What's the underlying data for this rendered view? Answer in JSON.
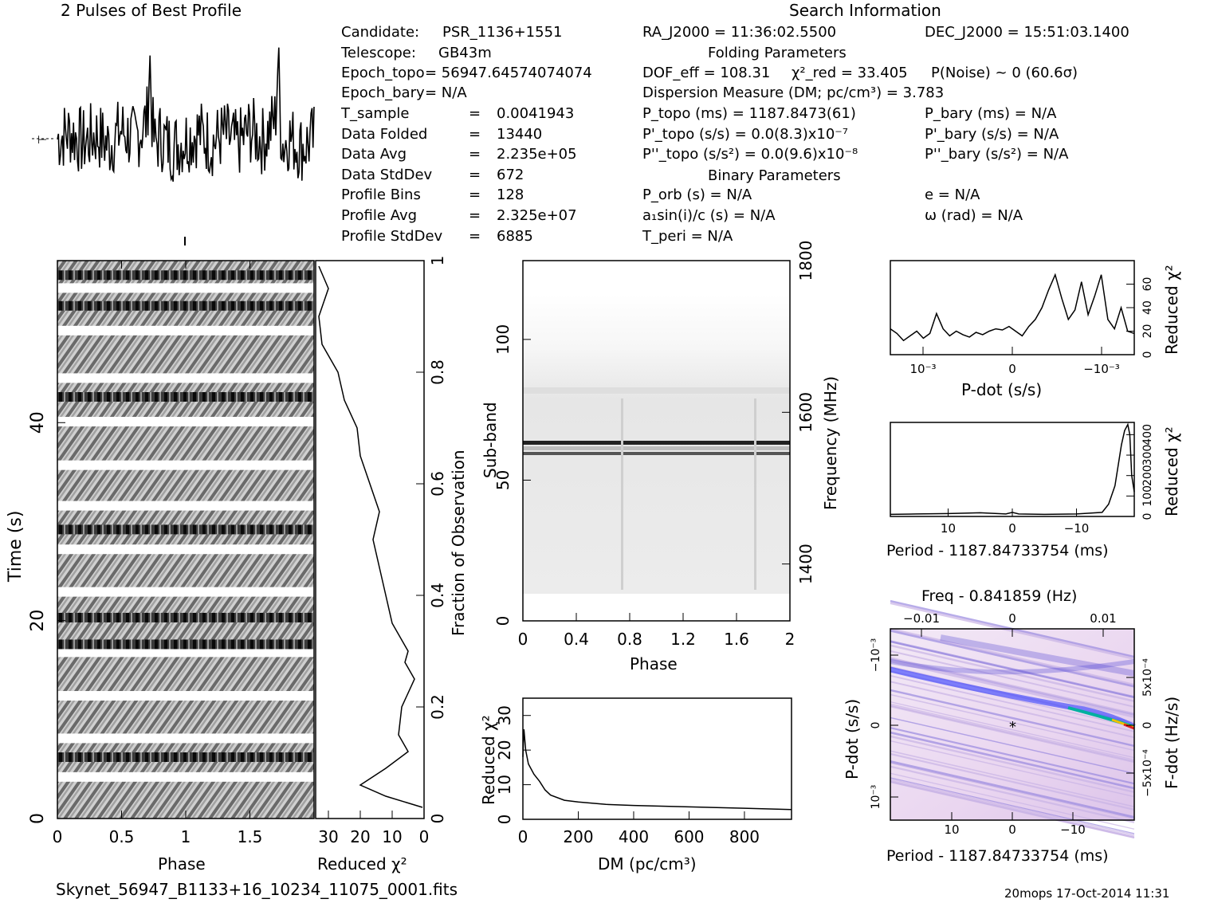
{
  "header": {
    "profile_title": "2 Pulses of Best Profile",
    "search_title": "Search Information",
    "folding_title": "Folding Parameters",
    "binary_title": "Binary Parameters",
    "filename": "Skynet_56947_B1133+16_10234_11075_0001.fits",
    "footer_right": "20mops 17-Oct-2014 11:31"
  },
  "info_left": [
    {
      "label": "Candidate:",
      "value": "PSR_1136+1551"
    },
    {
      "label": "Telescope:",
      "value": "GB43m"
    },
    {
      "label": "Epoch_topo",
      "value": "= 56947.64574074074"
    },
    {
      "label": "Epoch_bary",
      "value": "= N/A"
    },
    {
      "label": "T_sample",
      "value": "0.0041943"
    },
    {
      "label": "Data Folded",
      "value": "13440"
    },
    {
      "label": "Data Avg",
      "value": "2.235e+05"
    },
    {
      "label": "Data StdDev",
      "value": "672"
    },
    {
      "label": "Profile Bins",
      "value": "128"
    },
    {
      "label": "Profile Avg",
      "value": "2.325e+07"
    },
    {
      "label": "Profile StdDev",
      "value": "6885"
    }
  ],
  "info_right": {
    "ra": "RA_J2000 = 11:36:02.5500",
    "dec": "DEC_J2000 = 15:51:03.1400",
    "dof": "DOF_eff = 108.31",
    "chi2": "χ²_red = 33.405",
    "pnoise": "P(Noise) ~ 0   (60.6σ)",
    "dm": "Dispersion Measure (DM; pc/cm³) = 3.783",
    "p_topo": "P_topo (ms) =  1187.8473(61)",
    "p_bary": "P_bary (ms) = N/A",
    "pd_topo": "P'_topo (s/s) = 0.0(8.3)x10⁻⁷",
    "pd_bary": "P'_bary (s/s) = N/A",
    "pdd_topo": "P''_topo (s/s²) = 0.0(9.6)x10⁻⁸",
    "pdd_bary": "P''_bary (s/s²) = N/A",
    "p_orb": "P_orb (s) = N/A",
    "e": "e = N/A",
    "a1sini": "a₁sin(i)/c (s) = N/A",
    "omega": "ω (rad) = N/A",
    "t_peri": "T_peri = N/A"
  },
  "axes": {
    "time_label": "Time (s)",
    "phase_label": "Phase",
    "redchi_label": "Reduced χ²",
    "fraction_label": "Fraction of Observation",
    "subband_label": "Sub-band",
    "frequency_label": "Frequency (MHz)",
    "dm_label": "DM (pc/cm³)",
    "pdot_label": "P-dot (s/s)",
    "period_label": "Period - 1187.84733754 (ms)",
    "freq_label": "Freq - 0.841859 (Hz)",
    "fdot_label": "F-dot (Hz/s)"
  },
  "chart_data": [
    {
      "id": "profile",
      "type": "line",
      "title": "2 Pulses of Best Profile",
      "x": [
        0.0,
        0.1,
        0.2,
        0.3,
        0.4,
        0.5,
        0.6,
        0.7,
        0.72,
        0.74,
        0.76,
        0.8,
        0.9,
        1.0,
        1.1,
        1.2,
        1.3,
        1.4,
        1.5,
        1.6,
        1.7,
        1.72,
        1.74,
        1.76,
        1.8,
        1.9,
        2.0
      ],
      "values": [
        0.5,
        0.8,
        0.3,
        0.7,
        0.2,
        0.9,
        0.4,
        1.4,
        4.2,
        1.0,
        0.2,
        0.6,
        0.1,
        0.5,
        0.8,
        0.3,
        0.7,
        0.2,
        0.9,
        0.4,
        1.4,
        4.2,
        1.0,
        0.2,
        0.6,
        0.1,
        0.5
      ],
      "xlim": [
        0,
        2
      ]
    },
    {
      "id": "time-phase",
      "type": "heatmap",
      "xlabel": "Phase",
      "ylabel": "Time (s)",
      "x_ticks": [
        "0",
        "0.5",
        "1",
        "1.5"
      ],
      "y_ticks": [
        "0",
        "20",
        "40"
      ],
      "xlim": [
        0,
        2
      ],
      "ylim": [
        0,
        56.37
      ],
      "white_gaps_time": [
        4.2,
        8.1,
        12.4,
        16.8,
        22.9,
        27.2,
        31.6,
        35.7,
        40.1,
        44.5,
        49.3,
        53.6
      ],
      "dark_bands_time": [
        6.2,
        17.6,
        20.3,
        29.2,
        42.6,
        51.8,
        54.9
      ]
    },
    {
      "id": "time-redchi",
      "type": "line",
      "xlabel": "Reduced χ²",
      "ylabel": "Fraction of Observation",
      "x_ticks": [
        "30",
        "20",
        "10",
        "0"
      ],
      "y_ticks": [
        "0",
        "0.2",
        "0.4",
        "0.6",
        "0.8",
        "1"
      ],
      "xlim": [
        34,
        0
      ],
      "ylim": [
        0,
        1
      ],
      "fraction": [
        0.02,
        0.04,
        0.06,
        0.09,
        0.12,
        0.15,
        0.2,
        0.25,
        0.28,
        0.3,
        0.35,
        0.4,
        0.45,
        0.5,
        0.55,
        0.6,
        0.65,
        0.7,
        0.75,
        0.8,
        0.85,
        0.9,
        0.95,
        0.99
      ],
      "values": [
        0.5,
        12.0,
        20.0,
        12.0,
        5.0,
        8.0,
        7.0,
        3.0,
        6.0,
        5.0,
        10.0,
        12.0,
        14.0,
        16.0,
        14.0,
        17.0,
        20.0,
        21.0,
        25.0,
        27.0,
        32.0,
        33.0,
        30.0,
        33.0
      ]
    },
    {
      "id": "subband-phase",
      "type": "heatmap",
      "xlabel": "Phase",
      "ylabel": "Sub-band",
      "y2label": "Frequency (MHz)",
      "x_ticks": [
        "0",
        "0.4",
        "0.8",
        "1.2",
        "1.6",
        "2"
      ],
      "y_ticks": [
        "0",
        "50",
        "100"
      ],
      "y2_ticks": [
        "1400",
        "1600",
        "1800"
      ],
      "xlim": [
        0,
        2
      ],
      "ylim": [
        0,
        128
      ],
      "dark_rows": [
        60,
        64
      ],
      "dark_columns_phase": [
        0.75,
        1.75
      ]
    },
    {
      "id": "dm-redchi",
      "type": "line",
      "xlabel": "DM (pc/cm³)",
      "ylabel": "Reduced χ²",
      "x_ticks": [
        "0",
        "200",
        "400",
        "600",
        "800"
      ],
      "y_ticks": [
        "0",
        "10",
        "20",
        "30"
      ],
      "xlim": [
        0,
        970
      ],
      "ylim": [
        0,
        35
      ],
      "x": [
        0,
        3.783,
        10,
        20,
        40,
        60,
        80,
        100,
        150,
        200,
        300,
        400,
        600,
        800,
        970
      ],
      "values": [
        18,
        26,
        20,
        16,
        13,
        11,
        8.5,
        7,
        5.5,
        5,
        4.3,
        4,
        3.6,
        3.2,
        2.8
      ]
    },
    {
      "id": "pdot-redchi",
      "type": "line",
      "xlabel": "P-dot (s/s)",
      "ylabel": "Reduced χ²",
      "x_ticks": [
        "10⁻³",
        "0",
        "−10⁻³"
      ],
      "y_ticks": [
        "0",
        "20",
        "40",
        "60"
      ],
      "ylim": [
        0,
        80
      ],
      "values": [
        22,
        18,
        12,
        16,
        20,
        14,
        18,
        35,
        22,
        16,
        20,
        17,
        15,
        19,
        17,
        20,
        22,
        21,
        24,
        20,
        16,
        24,
        30,
        40,
        55,
        68,
        48,
        30,
        38,
        62,
        34,
        50,
        68,
        30,
        22,
        40,
        20,
        18
      ]
    },
    {
      "id": "period-redchi",
      "type": "line",
      "xlabel": "Period - 1187.84733754 (ms)",
      "ylabel": "Reduced χ²",
      "x_ticks": [
        "10",
        "0",
        "−10"
      ],
      "y_ticks": [
        "0",
        "100",
        "200",
        "300",
        "400"
      ],
      "xlim": [
        19,
        -19
      ],
      "ylim": [
        0,
        460
      ],
      "x": [
        19,
        15,
        10,
        5,
        1,
        0,
        -1,
        -5,
        -10,
        -14,
        -15,
        -16,
        -17,
        -17.5,
        -18,
        -18.3,
        -18.6,
        -19
      ],
      "values": [
        10,
        12,
        14,
        18,
        12,
        20,
        12,
        10,
        12,
        20,
        60,
        150,
        350,
        420,
        450,
        400,
        200,
        120
      ]
    },
    {
      "id": "period-pdot",
      "type": "heatmap",
      "xlabel": "Period - 1187.84733754 (ms)",
      "ylabel": "P-dot (s/s)",
      "x2label": "Freq - 0.841859 (Hz)",
      "y2label": "F-dot (Hz/s)",
      "x_ticks": [
        "10",
        "0",
        "−10"
      ],
      "x2_ticks": [
        "−0.01",
        "0",
        "0.01"
      ],
      "y_ticks": [
        "10⁻³",
        "0",
        "−10⁻³"
      ],
      "y2_ticks": [
        "−5x10⁻⁴",
        "0",
        "5x10⁻⁴"
      ],
      "best_marker": [
        0,
        0
      ]
    }
  ]
}
